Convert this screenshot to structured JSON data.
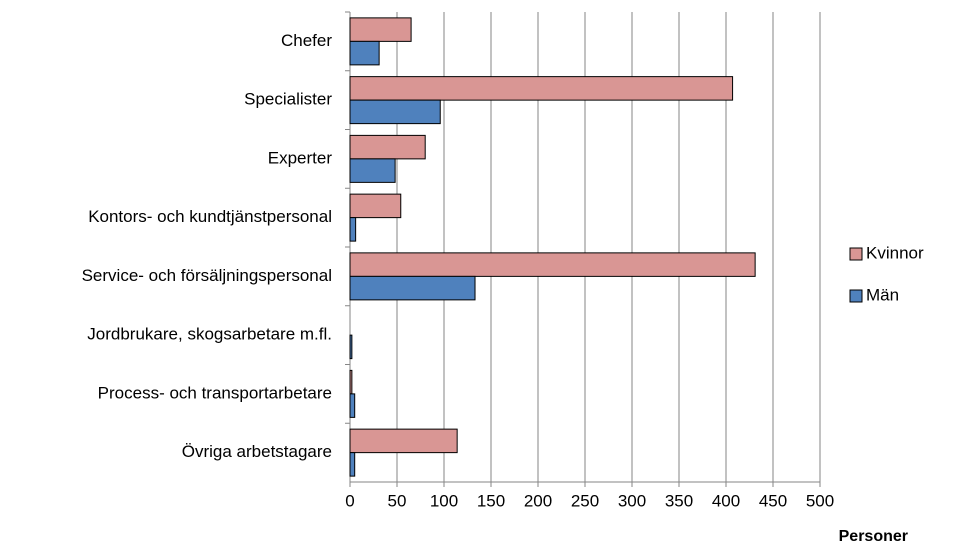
{
  "chart_data": {
    "type": "bar",
    "orientation": "horizontal",
    "x_label": "Personer",
    "categories": [
      "Chefer",
      "Specialister",
      "Experter",
      "Kontors- och kundtjänstpersonal",
      "Service- och försäljningspersonal",
      "Jordbrukare, skogsarbetare m.fl.",
      "Process- och transportarbetare",
      "Övriga arbetstagare"
    ],
    "series": [
      {
        "name": "Kvinnor",
        "color": "#d99694",
        "values": [
          65,
          407,
          80,
          54,
          431,
          0,
          2,
          114
        ]
      },
      {
        "name": "Män",
        "color": "#4f81bd",
        "values": [
          31,
          96,
          48,
          6,
          133,
          2,
          5,
          5
        ]
      }
    ],
    "xlim": [
      0,
      500
    ],
    "xticks": [
      0,
      50,
      100,
      150,
      200,
      250,
      300,
      350,
      400,
      450,
      500
    ],
    "grid": true,
    "legend": "right"
  }
}
